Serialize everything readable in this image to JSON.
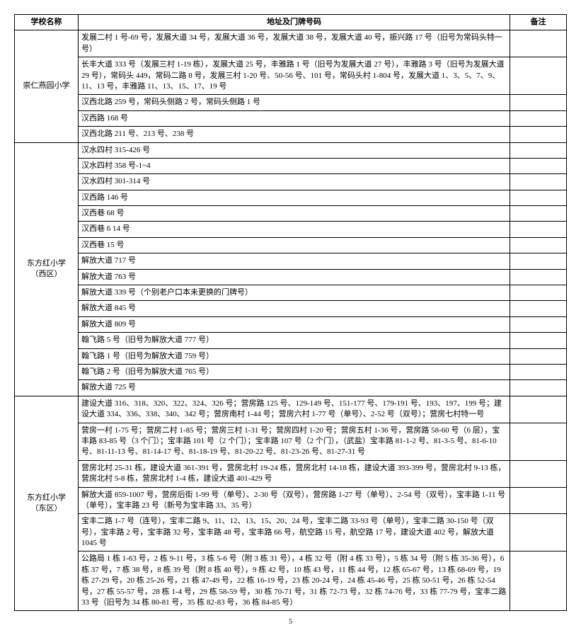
{
  "headers": {
    "school": "学校名称",
    "address": "地址及门牌号码",
    "note": "备注"
  },
  "page_number": "5",
  "schools": [
    {
      "name": "崇仁燕园小学",
      "rows": [
        "发展二村 1 号-69 号，发展大道 34 号，发展大道 36 号，发展大道 38 号，发展大道 40 号，振兴路 17 号（旧号为常码头特一号）",
        "长丰大道 333 号（发展三村 1-19 栋），发展大道 25 号，丰雅路 1 号（旧号为发展大道 27 号），丰雅路 3 号（旧号为发展大道 29 号），常码头 449，常码二路 8 号，发展三村 1-20 号、50-56 号、101 号，常码头村 1-804 号，发展大道 1、3、5、7、9、11、13 号，丰雅路 11、13、15、17、19 号",
        "汉西北路 259 号，常码头侧路 2 号，常码头侧路 1 号",
        "汉西路 168 号",
        "汉西北路 211 号、213 号、238 号"
      ]
    },
    {
      "name": "东方红小学\n（西区）",
      "rows": [
        "汉水四村 315-426 号",
        "汉水四村 358 号-1~4",
        "汉水四村 301-314 号",
        "汉西路 146 号",
        "汉西巷 68 号",
        "汉西巷 6 14 号",
        "汉西巷 15 号",
        "解放大道 717 号",
        "解放大道 763 号",
        "解放大道 339 号（个别老户口本未更换的门牌号）",
        "解放大道 845 号",
        "解放大道 809 号",
        "翰飞路 5 号（旧号为解放大道 777 号）",
        "翰飞路 1 号（旧号为解放大道 759 号）",
        "翰飞路 2 号（旧号为解放大道 765 号）",
        "解放大道 725 号"
      ]
    },
    {
      "name": "东方红小学\n（东区）",
      "rows": [
        "建设大道 316、318、320、322、324、326 号；营房路 125 号、129-149 号、151-177 号、179-191 号、193、197、199 号；建设大道 334、336、338、340、342 号；营房南村 1-44 号；营房六村 1-77 号（单号）、2-52 号（双号）；营房七村特一号",
        "营房一村 1-75 号；营房二村 1-85 号；营房三村 1-31 号；营房四村 1-20 号；营房五村 1-36 号，营房路 58-60 号（6 层），宝丰路 83-85 号（3 个门）；宝丰路 101 号（2 个门）；宝丰路 107 号（2 个门），（武盐）宝丰路 81-1-2 号、81-3-5 号、81-6-10 号、81-11-13 号、81-14-17 号、81-18-19 号、81-20-22 号、81-23-26 号、81-27-31 号",
        "营房北村 25-31 栋，建设大道 361-391 号，营房北村 19-24 栋，营房北村 14-18 栋，建设大道 393-399 号，营房北村 9-13 栋，营房北村 5-8 栋，营房北村 1-4 栋，建设大道 401-429 号",
        "解放大道 859-1007 号，营房后街 1-99 号（单号）、2-30 号（双号），营房路 1-27 号（单号）、2-54 号（双号），宝丰路 1-11 号（单号），宝丰路 23 号（新号为宝丰路 33、35 号）",
        "宝丰二路 1-7 号（连号），宝丰二路 9、11、12、13、15、20、24 号，宝丰二路 33-93 号（单号），宝丰二路 30-150 号（双号），宝丰路 2 号，宝丰路 32 号，宝丰路 48 号，宝丰路 66 号，航空路 15 号，航空路 17 号，建设大道 402 号，解放大道 1045 号",
        "公路局 1 栋 1-63 号，2 栋 9-11 号，3 栋 5-6 号（附 3 栋 31 号），4 栋 32 号（附 4 栋 33 号），5 栋 34 号（附 5 栋 35-36 号），6 栋 37 号，7 栋 38 号，8 栋 39 号（附 8 栋 40 号），9 栋 42 号，10 栋 43 号，11 栋 44 号，12 栋 65-67 号，13 栋 68-69 号，19 栋 27-29 号，20 栋 25-26 号，21 栋 47-49 号，22 栋 16-19 号，23 栋 20-24 号，24 栋 45-46 号，25 栋 50-51 号，26 栋 52-54 号，27 栋 55-57 号，28 栋 1-4 号，29 栋 58-59 号，30 栋 70-71 号，31 栋 72-73 号，32 栋 74-76 号，33 栋 77-79 号，宝丰二路 33 号（旧号为 34 栋 80-81 号，35 栋 82-83 号，36 栋 84-85 号）"
      ]
    }
  ]
}
